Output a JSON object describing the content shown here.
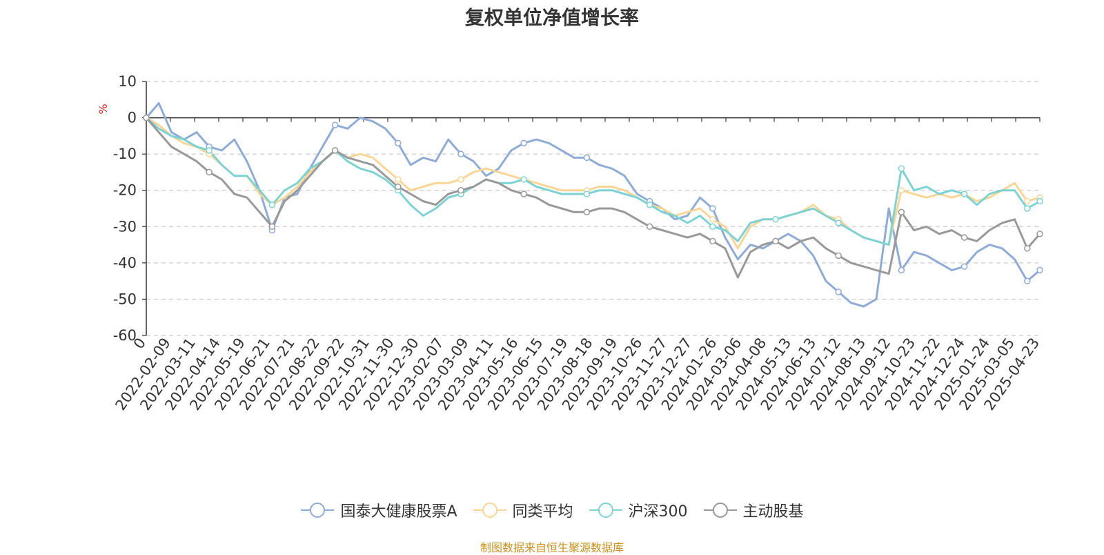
{
  "title": "复权单位净值增长率",
  "source_note": "制图数据来自恒生聚源数据库",
  "chart_data": {
    "type": "line",
    "title": "复权单位净值增长率",
    "ylabel": "%",
    "ylim": [
      -60,
      10
    ],
    "yticks": [
      10,
      0,
      -10,
      -20,
      -30,
      -40,
      -50,
      -60
    ],
    "grid": true,
    "legend_position": "bottom",
    "x_tick_labels": [
      "0",
      "2022-02-09",
      "2022-03-11",
      "2022-04-14",
      "2022-05-19",
      "2022-06-21",
      "2022-07-21",
      "2022-08-22",
      "2022-09-22",
      "2022-10-31",
      "2022-11-30",
      "2022-12-30",
      "2023-02-07",
      "2023-03-09",
      "2023-04-11",
      "2023-05-16",
      "2023-06-15",
      "2023-07-19",
      "2023-08-18",
      "2023-09-19",
      "2023-10-26",
      "2023-11-27",
      "2023-12-27",
      "2024-01-26",
      "2024-03-06",
      "2024-04-08",
      "2024-05-13",
      "2024-06-13",
      "2024-07-12",
      "2024-08-13",
      "2024-09-12",
      "2024-10-23",
      "2024-11-22",
      "2024-12-24",
      "2025-01-24",
      "2025-03-05",
      "2025-04-23"
    ],
    "series": [
      {
        "name": "国泰大健康股票A",
        "color": "#8fabd8",
        "values": [
          0,
          4,
          -4,
          -6,
          -4,
          -8,
          -9,
          -6,
          -12,
          -20,
          -31,
          -22,
          -21,
          -14,
          -8,
          -2,
          -3,
          0,
          -1,
          -3,
          -7,
          -13,
          -11,
          -12,
          -6,
          -10,
          -12,
          -16,
          -14,
          -9,
          -7,
          -6,
          -7,
          -9,
          -11,
          -11,
          -13,
          -14,
          -16,
          -21,
          -23,
          -25,
          -28,
          -27,
          -22,
          -25,
          -33,
          -39,
          -35,
          -36,
          -34,
          -32,
          -34,
          -38,
          -45,
          -48,
          -51,
          -52,
          -50,
          -25,
          -42,
          -37,
          -38,
          -40,
          -42,
          -41,
          -37,
          -35,
          -36,
          -39,
          -45,
          -42
        ]
      },
      {
        "name": "同类平均",
        "color": "#f9d696",
        "values": [
          0,
          -2,
          -5,
          -7,
          -8,
          -10,
          -13,
          -16,
          -16,
          -21,
          -24,
          -22,
          -19,
          -15,
          -12,
          -9,
          -11,
          -10,
          -11,
          -14,
          -17,
          -20,
          -19,
          -18,
          -18,
          -17,
          -15,
          -14,
          -15,
          -16,
          -17,
          -18,
          -19,
          -20,
          -20,
          -20,
          -19,
          -19,
          -20,
          -22,
          -24,
          -25,
          -27,
          -26,
          -25,
          -28,
          -30,
          -36,
          -30,
          -28,
          -28,
          -27,
          -26,
          -24,
          -27,
          -28,
          -31,
          -33,
          -34,
          -35,
          -20,
          -21,
          -22,
          -21,
          -22,
          -21,
          -23,
          -22,
          -20,
          -18,
          -23,
          -22
        ]
      },
      {
        "name": "沪深300",
        "color": "#7dd3d4",
        "values": [
          0,
          -3,
          -5,
          -6,
          -8,
          -9,
          -13,
          -16,
          -16,
          -20,
          -24,
          -20,
          -18,
          -14,
          -12,
          -9,
          -12,
          -14,
          -15,
          -17,
          -20,
          -24,
          -27,
          -25,
          -22,
          -21,
          -19,
          -17,
          -18,
          -18,
          -17,
          -19,
          -20,
          -21,
          -21,
          -21,
          -20,
          -20,
          -21,
          -22,
          -24,
          -26,
          -27,
          -29,
          -27,
          -30,
          -31,
          -34,
          -29,
          -28,
          -28,
          -27,
          -26,
          -25,
          -27,
          -29,
          -31,
          -33,
          -34,
          -35,
          -14,
          -20,
          -19,
          -21,
          -20,
          -21,
          -24,
          -21,
          -20,
          -20,
          -25,
          -23
        ]
      },
      {
        "name": "主动股基",
        "color": "#999999",
        "values": [
          0,
          -4,
          -8,
          -10,
          -12,
          -15,
          -17,
          -21,
          -22,
          -26,
          -30,
          -23,
          -20,
          -16,
          -12,
          -9,
          -11,
          -12,
          -13,
          -16,
          -19,
          -21,
          -23,
          -24,
          -21,
          -20,
          -19,
          -17,
          -18,
          -20,
          -21,
          -22,
          -24,
          -25,
          -26,
          -26,
          -25,
          -25,
          -26,
          -28,
          -30,
          -31,
          -32,
          -33,
          -32,
          -34,
          -36,
          -44,
          -37,
          -35,
          -34,
          -36,
          -34,
          -33,
          -36,
          -38,
          -40,
          -41,
          -42,
          -43,
          -26,
          -31,
          -30,
          -32,
          -31,
          -33,
          -34,
          -31,
          -29,
          -28,
          -36,
          -32
        ]
      }
    ]
  }
}
